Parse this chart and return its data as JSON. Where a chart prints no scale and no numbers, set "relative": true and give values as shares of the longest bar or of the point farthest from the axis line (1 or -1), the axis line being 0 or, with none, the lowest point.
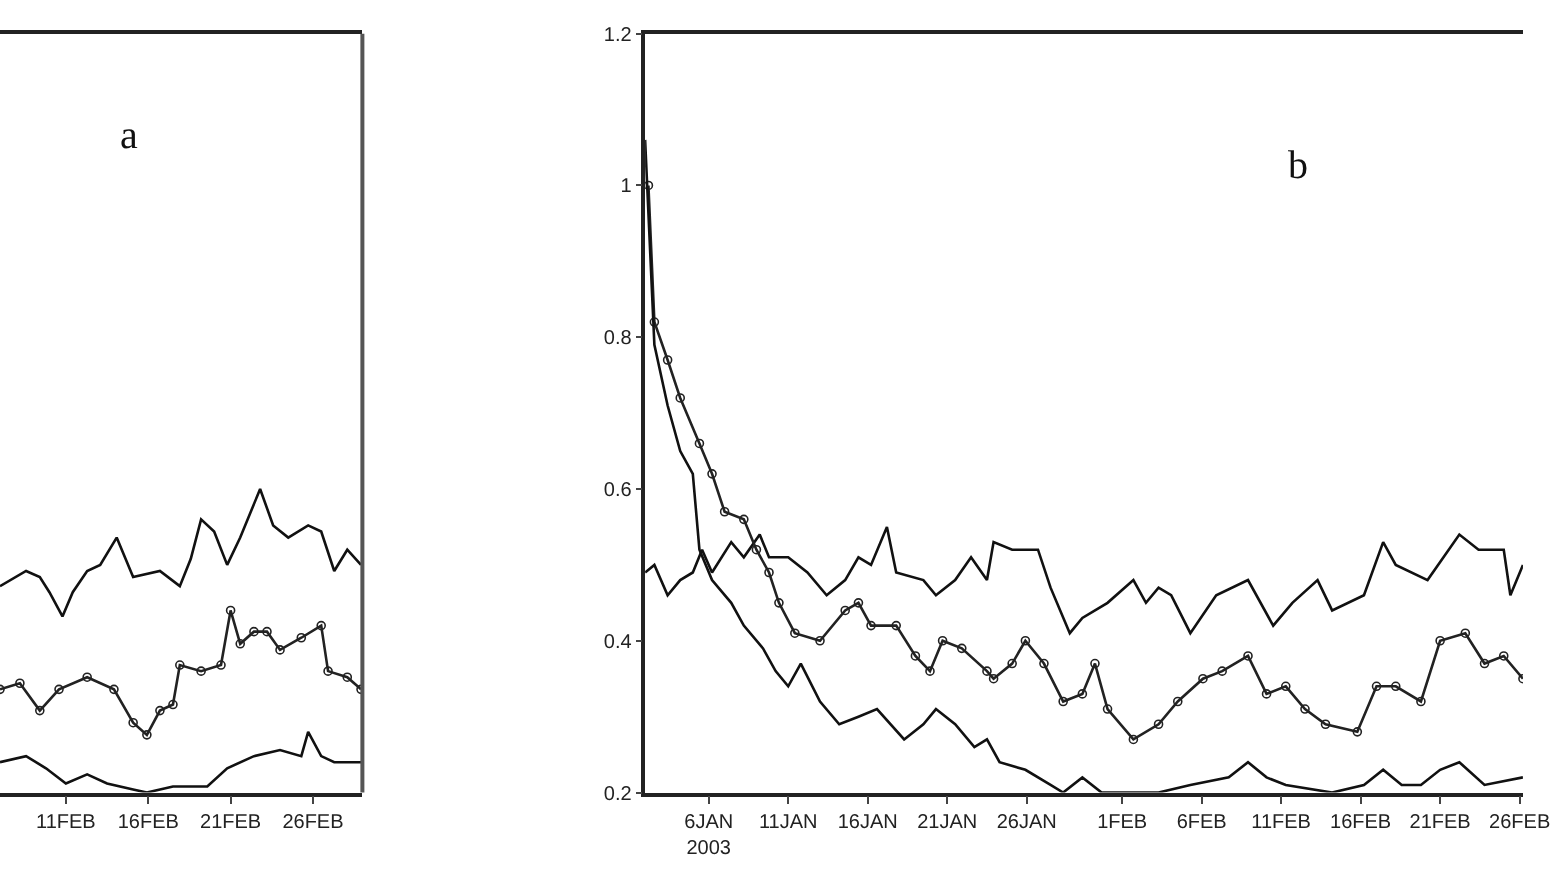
{
  "chart_data": [
    {
      "type": "line",
      "relative": true,
      "tick_labels": "x",
      "line_style": "solid",
      "annotations": [
        "a"
      ],
      "xlim": [
        "2003-02-07",
        "2003-03-01"
      ],
      "xticks": [
        {
          "value": "2003-02-11",
          "label": "11FEB"
        },
        {
          "value": "2003-02-16",
          "label": "16FEB"
        },
        {
          "value": "2003-02-21",
          "label": "21FEB"
        },
        {
          "value": "2003-02-26",
          "label": "26FEB"
        }
      ],
      "series": [
        {
          "color": "#111111",
          "marker": "none",
          "x": [
            "2003-02-07",
            "2003-02-08T14:00",
            "2003-02-09T10:00",
            "2003-02-10",
            "2003-02-10T19:00",
            "2003-02-11T10:00",
            "2003-02-12T07:00",
            "2003-02-13T02:00",
            "2003-02-14T02:00",
            "2003-02-15T02:00",
            "2003-02-16T17:00",
            "2003-02-17T22:00",
            "2003-02-18T14:00",
            "2003-02-19T05:00",
            "2003-02-20",
            "2003-02-20T19:00",
            "2003-02-21T14:00",
            "2003-02-22T19:00",
            "2003-02-23T14:00",
            "2003-02-24T12:00",
            "2003-02-25T17:00",
            "2003-02-26T12:00",
            "2003-02-27T07:00",
            "2003-02-28T02:00",
            "2003-02-28T22:00"
          ],
          "values": [
            0.68,
            0.73,
            0.71,
            0.66,
            0.58,
            0.66,
            0.73,
            0.75,
            0.84,
            0.71,
            0.73,
            0.68,
            0.77,
            0.9,
            0.86,
            0.75,
            0.84,
            1.0,
            0.88,
            0.84,
            0.88,
            0.86,
            0.73,
            0.8,
            0.75
          ]
        },
        {
          "color": "#222222",
          "marker": "circle",
          "x": [
            "2003-02-07",
            "2003-02-08T05:00",
            "2003-02-09T10:00",
            "2003-02-10T14:00",
            "2003-02-12T07:00",
            "2003-02-13T22:00",
            "2003-02-15T02:00",
            "2003-02-15T22:00",
            "2003-02-16T17:00",
            "2003-02-17T12:00",
            "2003-02-17T22:00",
            "2003-02-19T05:00",
            "2003-02-20T10:00",
            "2003-02-21",
            "2003-02-21T14:00",
            "2003-02-22T10:00",
            "2003-02-23T05:00",
            "2003-02-24",
            "2003-02-25T07:00",
            "2003-02-26T12:00",
            "2003-02-26T22:00",
            "2003-02-28T02:00",
            "2003-02-28T22:00"
          ],
          "values": [
            0.34,
            0.36,
            0.27,
            0.34,
            0.38,
            0.34,
            0.23,
            0.19,
            0.27,
            0.29,
            0.42,
            0.4,
            0.42,
            0.6,
            0.49,
            0.53,
            0.53,
            0.47,
            0.51,
            0.55,
            0.4,
            0.38,
            0.34
          ]
        },
        {
          "color": "#111111",
          "marker": "none",
          "x": [
            "2003-02-07",
            "2003-02-08T14:00",
            "2003-02-09T19:00",
            "2003-02-11",
            "2003-02-12T07:00",
            "2003-02-13T12:00",
            "2003-02-15T02:00",
            "2003-02-15T22:00",
            "2003-02-17T12:00",
            "2003-02-19T14:00",
            "2003-02-20T19:00",
            "2003-02-22T10:00",
            "2003-02-24",
            "2003-02-25T07:00",
            "2003-02-25T17:00",
            "2003-02-26T12:00",
            "2003-02-27T07:00",
            "2003-02-28T22:00"
          ],
          "values": [
            0.1,
            0.12,
            0.08,
            0.03,
            0.06,
            0.03,
            0.01,
            0,
            0.02,
            0.02,
            0.08,
            0.12,
            0.14,
            0.12,
            0.2,
            0.12,
            0.1,
            0.1
          ]
        }
      ]
    },
    {
      "type": "line",
      "line_style": "solid",
      "annotations": [
        "b"
      ],
      "xlim": [
        "2003-01-02",
        "2003-02-26T05:00"
      ],
      "xticks": [
        {
          "value": "2003-01-06",
          "label": "6JAN\n2003"
        },
        {
          "value": "2003-01-11",
          "label": "11JAN"
        },
        {
          "value": "2003-01-16",
          "label": "16JAN"
        },
        {
          "value": "2003-01-21",
          "label": "21JAN"
        },
        {
          "value": "2003-01-26",
          "label": "26JAN"
        },
        {
          "value": "2003-02-01",
          "label": "1FEB"
        },
        {
          "value": "2003-02-06",
          "label": "6FEB"
        },
        {
          "value": "2003-02-11",
          "label": "11FEB"
        },
        {
          "value": "2003-02-16",
          "label": "16FEB"
        },
        {
          "value": "2003-02-21",
          "label": "21FEB"
        },
        {
          "value": "2003-02-26",
          "label": "26FEB"
        }
      ],
      "ylim": [
        0.2,
        1.2
      ],
      "yticks": [
        0.2,
        0.4,
        0.6,
        0.8,
        1,
        1.2
      ],
      "series": [
        {
          "color": "#111111",
          "marker": "none",
          "x": [
            "2003-01-02",
            "2003-01-02T14:00",
            "2003-01-03T10:00",
            "2003-01-04T05:00",
            "2003-01-05",
            "2003-01-05T14:00",
            "2003-01-06T05:00",
            "2003-01-07T10:00",
            "2003-01-08T05:00",
            "2003-01-09T05:00",
            "2003-01-09T19:00",
            "2003-01-11",
            "2003-01-12T05:00",
            "2003-01-13T10:00",
            "2003-01-14T14:00",
            "2003-01-15T10:00",
            "2003-01-16T05:00",
            "2003-01-17T05:00",
            "2003-01-17T19:00",
            "2003-01-19T12:00",
            "2003-01-20T07:00",
            "2003-01-21T12:00",
            "2003-01-22T12:00",
            "2003-01-23T12:00",
            "2003-01-23T22:00",
            "2003-01-25T02:00",
            "2003-01-26T17:00",
            "2003-01-27T12:00",
            "2003-01-28T17:00",
            "2003-01-29T12:00",
            "2003-01-31T02:00",
            "2003-02-01T17:00",
            "2003-02-02T12:00",
            "2003-02-03T07:00",
            "2003-02-04T02:00",
            "2003-02-05T07:00",
            "2003-02-06T22:00",
            "2003-02-08T22:00",
            "2003-02-10T12:00",
            "2003-02-11T17:00",
            "2003-02-13T07:00",
            "2003-02-14T05:00",
            "2003-02-16T05:00",
            "2003-02-17T10:00",
            "2003-02-18T05:00",
            "2003-02-20T05:00",
            "2003-02-22T05:00",
            "2003-02-23T10:00",
            "2003-02-25",
            "2003-02-25T10:00",
            "2003-02-26T05:00"
          ],
          "values": [
            0.49,
            0.5,
            0.46,
            0.48,
            0.49,
            0.52,
            0.49,
            0.53,
            0.51,
            0.54,
            0.51,
            0.51,
            0.49,
            0.46,
            0.48,
            0.51,
            0.5,
            0.55,
            0.49,
            0.48,
            0.46,
            0.48,
            0.51,
            0.48,
            0.53,
            0.52,
            0.52,
            0.47,
            0.41,
            0.43,
            0.45,
            0.48,
            0.45,
            0.47,
            0.46,
            0.41,
            0.46,
            0.48,
            0.42,
            0.45,
            0.48,
            0.44,
            0.46,
            0.53,
            0.5,
            0.48,
            0.54,
            0.52,
            0.52,
            0.46,
            0.5
          ]
        },
        {
          "color": "#222222",
          "marker": "circle",
          "x": [
            "2003-01-02T05:00",
            "2003-01-02T14:00",
            "2003-01-03T10:00",
            "2003-01-04T05:00",
            "2003-01-05T10:00",
            "2003-01-06T05:00",
            "2003-01-07",
            "2003-01-08T05:00",
            "2003-01-09",
            "2003-01-09T19:00",
            "2003-01-10T10:00",
            "2003-01-11T10:00",
            "2003-01-13",
            "2003-01-14T14:00",
            "2003-01-15T10:00",
            "2003-01-16T05:00",
            "2003-01-17T19:00",
            "2003-01-19",
            "2003-01-19T22:00",
            "2003-01-20T17:00",
            "2003-01-21T22:00",
            "2003-01-23T12:00",
            "2003-01-23T22:00",
            "2003-01-25T02:00",
            "2003-01-25T22:00",
            "2003-01-27T02:00",
            "2003-01-28T07:00",
            "2003-01-29T12:00",
            "2003-01-30T07:00",
            "2003-01-31T02:00",
            "2003-02-01T17:00",
            "2003-02-03T07:00",
            "2003-02-04T12:00",
            "2003-02-06T02:00",
            "2003-02-07T07:00",
            "2003-02-08T22:00",
            "2003-02-10T02:00",
            "2003-02-11T07:00",
            "2003-02-12T12:00",
            "2003-02-13T19:00",
            "2003-02-15T19:00",
            "2003-02-17",
            "2003-02-18T05:00",
            "2003-02-19T19:00",
            "2003-02-21",
            "2003-02-22T14:00",
            "2003-02-23T19:00",
            "2003-02-25",
            "2003-02-26T05:00"
          ],
          "values": [
            1.0,
            0.82,
            0.77,
            0.72,
            0.66,
            0.62,
            0.57,
            0.56,
            0.52,
            0.49,
            0.45,
            0.41,
            0.4,
            0.44,
            0.45,
            0.42,
            0.42,
            0.38,
            0.36,
            0.4,
            0.39,
            0.36,
            0.35,
            0.37,
            0.4,
            0.37,
            0.32,
            0.33,
            0.37,
            0.31,
            0.27,
            0.29,
            0.32,
            0.35,
            0.36,
            0.38,
            0.33,
            0.34,
            0.31,
            0.29,
            0.28,
            0.34,
            0.34,
            0.32,
            0.4,
            0.41,
            0.37,
            0.38,
            0.35
          ]
        },
        {
          "color": "#111111",
          "marker": "none",
          "x": [
            "2003-01-02",
            "2003-01-02T14:00",
            "2003-01-03T10:00",
            "2003-01-04T05:00",
            "2003-01-05",
            "2003-01-05T10:00",
            "2003-01-06T05:00",
            "2003-01-07T10:00",
            "2003-01-08T05:00",
            "2003-01-09T10:00",
            "2003-01-10T05:00",
            "2003-01-11",
            "2003-01-11T19:00",
            "2003-01-13",
            "2003-01-14T05:00",
            "2003-01-15T10:00",
            "2003-01-16T14:00",
            "2003-01-18T07:00",
            "2003-01-19T12:00",
            "2003-01-20T07:00",
            "2003-01-21T12:00",
            "2003-01-22T17:00",
            "2003-01-23T12:00",
            "2003-01-24T07:00",
            "2003-01-25T22:00",
            "2003-01-27T12:00",
            "2003-01-28T07:00",
            "2003-01-29T12:00",
            "2003-01-30T17:00",
            "2003-02-03T07:00",
            "2003-02-05T07:00",
            "2003-02-07T17:00",
            "2003-02-08T22:00",
            "2003-02-10T02:00",
            "2003-02-11T07:00",
            "2003-02-14T05:00",
            "2003-02-16T05:00",
            "2003-02-17T10:00",
            "2003-02-18T14:00",
            "2003-02-19T19:00",
            "2003-02-21",
            "2003-02-22T05:00",
            "2003-02-23T19:00",
            "2003-02-26T05:00"
          ],
          "values": [
            1.06,
            0.79,
            0.71,
            0.65,
            0.62,
            0.52,
            0.48,
            0.45,
            0.42,
            0.39,
            0.36,
            0.34,
            0.37,
            0.32,
            0.29,
            0.3,
            0.31,
            0.27,
            0.29,
            0.31,
            0.29,
            0.26,
            0.27,
            0.24,
            0.23,
            0.21,
            0.2,
            0.22,
            0.2,
            0.2,
            0.21,
            0.22,
            0.24,
            0.22,
            0.21,
            0.2,
            0.21,
            0.23,
            0.21,
            0.21,
            0.23,
            0.24,
            0.21,
            0.22
          ]
        }
      ]
    }
  ]
}
